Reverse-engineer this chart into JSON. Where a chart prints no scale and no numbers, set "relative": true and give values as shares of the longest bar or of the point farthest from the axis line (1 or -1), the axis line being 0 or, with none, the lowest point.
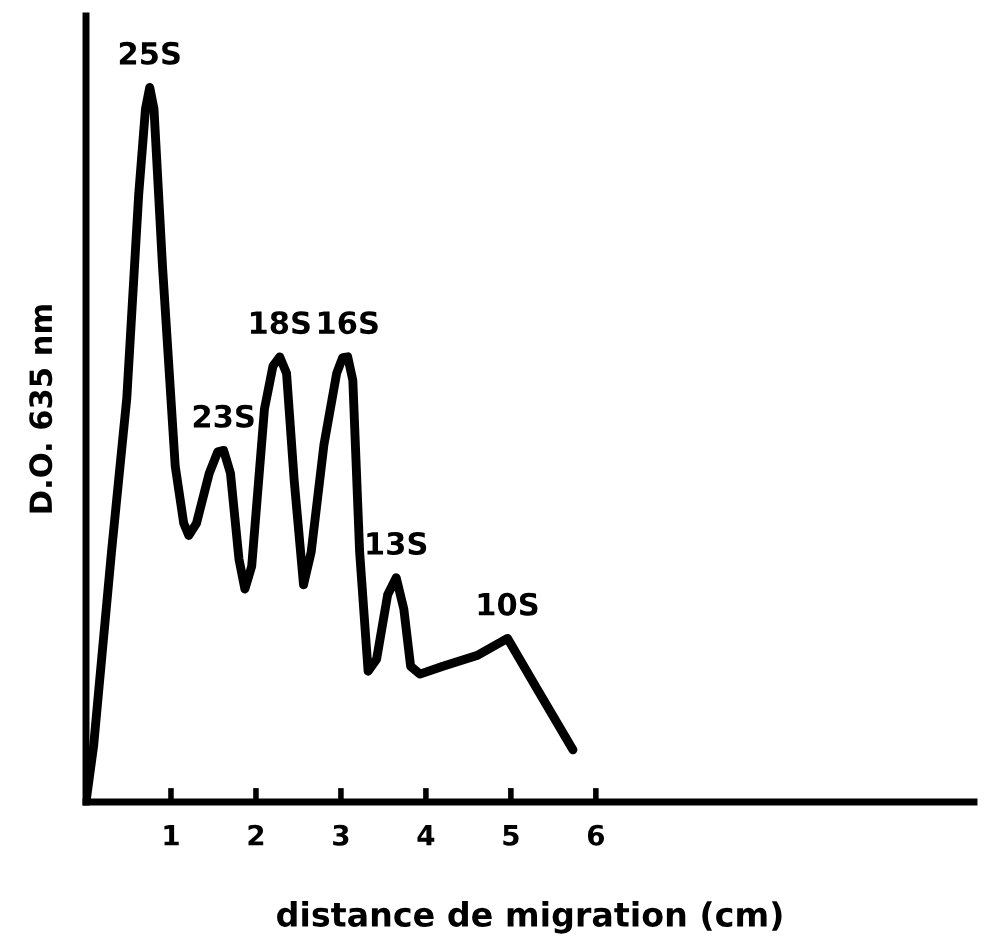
{
  "chart_data": {
    "type": "line",
    "relative": true,
    "xlabel": "distance de migration (cm)",
    "ylabel": "D.O. 635 nm",
    "xlim": [
      0,
      10.45
    ],
    "xticks": [
      1,
      2,
      3,
      4,
      5,
      6
    ],
    "tick_labels": "x",
    "grid": false,
    "legend": false,
    "marker": "none",
    "line_style": "solid",
    "series": [
      {
        "color": "#000000",
        "x": [
          0,
          0.09,
          0.3,
          0.48,
          0.62,
          0.7,
          0.75,
          0.8,
          0.9,
          1.05,
          1.15,
          1.21,
          1.3,
          1.45,
          1.55,
          1.62,
          1.7,
          1.8,
          1.87,
          1.95,
          2.1,
          2.2,
          2.28,
          2.36,
          2.45,
          2.56,
          2.65,
          2.8,
          2.95,
          3.02,
          3.08,
          3.14,
          3.22,
          3.32,
          3.42,
          3.55,
          3.65,
          3.74,
          3.82,
          3.93,
          4.2,
          4.6,
          4.96,
          5.3,
          5.73
        ],
        "values": [
          0,
          0.079,
          0.35,
          0.565,
          0.85,
          0.97,
          1.0,
          0.97,
          0.75,
          0.47,
          0.39,
          0.373,
          0.39,
          0.46,
          0.49,
          0.492,
          0.46,
          0.34,
          0.298,
          0.33,
          0.55,
          0.61,
          0.623,
          0.6,
          0.45,
          0.304,
          0.35,
          0.5,
          0.6,
          0.622,
          0.623,
          0.59,
          0.35,
          0.183,
          0.2,
          0.29,
          0.314,
          0.27,
          0.19,
          0.179,
          0.19,
          0.205,
          0.229,
          0.16,
          0.073
        ]
      }
    ],
    "annotations": [
      {
        "text": "25S",
        "x": 0.75,
        "y": 1.0
      },
      {
        "text": "23S",
        "x": 1.62,
        "y": 0.492
      },
      {
        "text": "18S",
        "x": 2.28,
        "y": 0.623
      },
      {
        "text": "16S",
        "x": 3.08,
        "y": 0.623
      },
      {
        "text": "13S",
        "x": 3.65,
        "y": 0.314
      },
      {
        "text": "10S",
        "x": 4.96,
        "y": 0.229
      }
    ]
  }
}
